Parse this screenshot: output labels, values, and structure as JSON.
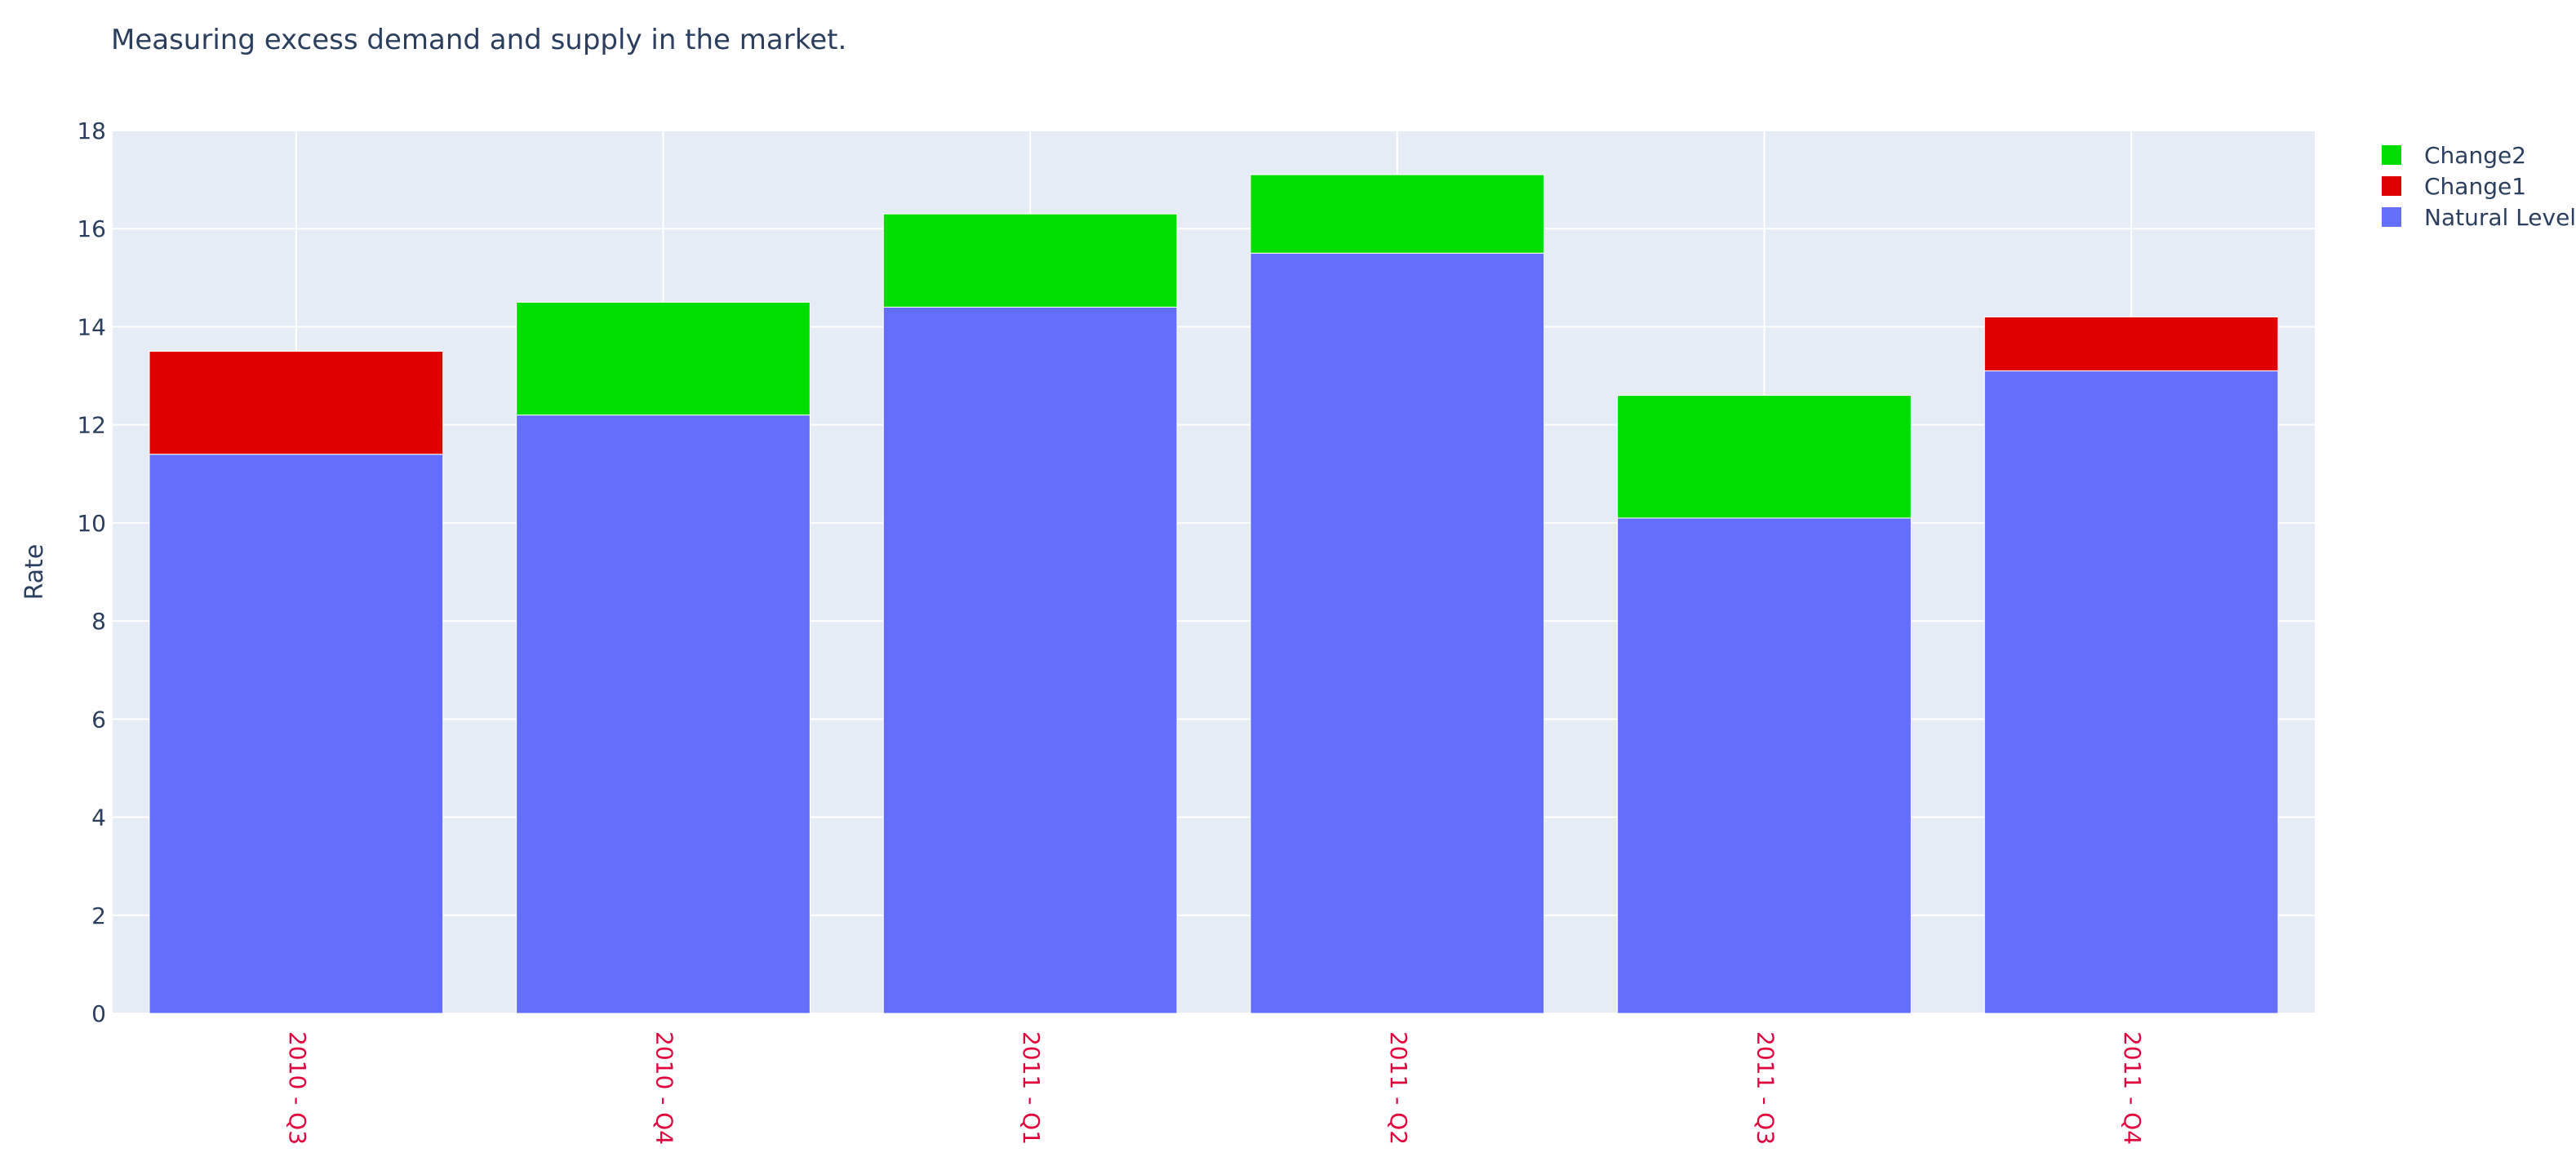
{
  "chart_data": {
    "type": "bar",
    "barmode": "stack",
    "title": "Measuring excess demand and supply in the market.",
    "xlabel": "",
    "ylabel": "Rate",
    "categories": [
      "2010 - Q3",
      "2010 - Q4",
      "2011 - Q1",
      "2011 - Q2",
      "2011 - Q3",
      "2011 - Q4"
    ],
    "series": [
      {
        "name": "Natural Level",
        "color": "#636efa",
        "values": [
          11.4,
          12.2,
          14.4,
          15.5,
          10.1,
          13.1
        ]
      },
      {
        "name": "Change1",
        "color": "#e00000",
        "values": [
          2.1,
          0,
          0,
          0,
          0,
          1.1
        ]
      },
      {
        "name": "Change2",
        "color": "#00dd00",
        "values": [
          0,
          2.3,
          1.9,
          1.6,
          2.5,
          0
        ]
      }
    ],
    "legend_order": [
      "Change2",
      "Change1",
      "Natural Level"
    ],
    "ylim": [
      0,
      18
    ],
    "yticks": [
      0,
      2,
      4,
      6,
      8,
      10,
      12,
      14,
      16,
      18
    ],
    "xtick_color": "#e0003c",
    "xtick_rotation": 90,
    "grid": true,
    "legend_position": "top-right",
    "plot_bgcolor": "#e5ecf6"
  }
}
